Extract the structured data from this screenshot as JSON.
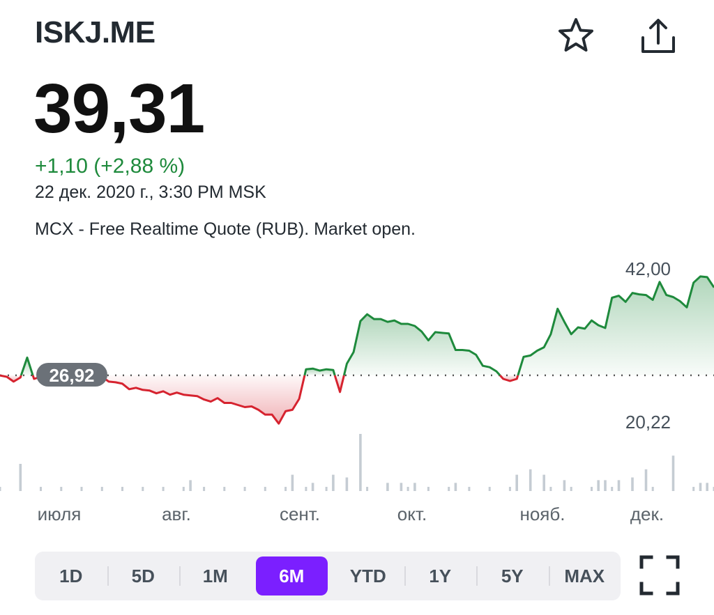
{
  "header": {
    "ticker": "ISKJ.ME",
    "star_icon": "star-icon",
    "share_icon": "share-icon"
  },
  "quote": {
    "price": "39,31",
    "change": "+1,10 (+2,88 %)",
    "timestamp": "22 дек. 2020 г., 3:30 PM MSK",
    "source": "MCX - Free Realtime Quote (RUB). Market open."
  },
  "chart_data": {
    "type": "area",
    "baseline": 26.92,
    "baseline_label": "26,92",
    "ylim": [
      20.22,
      42.0
    ],
    "yticks": [
      "42,00",
      "20,22"
    ],
    "x_labels": [
      "июля",
      "авг.",
      "сент.",
      "окт.",
      "нояб.",
      "дек."
    ],
    "colors": {
      "up": "#1e8a3c",
      "down": "#d6232f",
      "volume": "#c5ccd3"
    },
    "grid": false,
    "values": [
      26.9,
      26.7,
      26.0,
      26.6,
      29.5,
      26.4,
      26.7,
      26.9,
      26.3,
      26.5,
      26.1,
      25.9,
      26.4,
      26.0,
      26.5,
      26.7,
      26.0,
      25.9,
      25.7,
      24.9,
      25.1,
      24.8,
      24.7,
      24.3,
      24.6,
      24.1,
      24.4,
      24.1,
      24.0,
      23.9,
      23.4,
      23.1,
      23.6,
      22.9,
      22.9,
      22.6,
      22.3,
      22.4,
      21.9,
      21.2,
      21.2,
      19.9,
      21.7,
      21.9,
      23.5,
      27.8,
      27.9,
      27.6,
      27.8,
      27.7,
      24.5,
      28.6,
      30.3,
      34.8,
      35.8,
      35.1,
      35.1,
      34.7,
      34.9,
      34.4,
      34.4,
      34.1,
      33.3,
      32.0,
      33.2,
      33.1,
      33.0,
      30.6,
      30.6,
      30.5,
      29.9,
      28.3,
      28.1,
      27.5,
      26.4,
      26.1,
      26.4,
      29.6,
      29.8,
      30.5,
      31.0,
      32.9,
      36.6,
      34.7,
      32.9,
      33.9,
      33.7,
      34.9,
      34.2,
      33.8,
      38.2,
      38.5,
      37.6,
      38.9,
      38.7,
      38.6,
      37.9,
      40.5,
      38.6,
      38.3,
      37.7,
      36.8,
      40.4,
      41.3,
      41.2,
      39.7
    ],
    "volumes": [
      0,
      0,
      0,
      0.2,
      0,
      0,
      0,
      0,
      0,
      0,
      0,
      0,
      0,
      0,
      0,
      0,
      0,
      0,
      0,
      0,
      0,
      0,
      0,
      0,
      0,
      0,
      0,
      0,
      0.08,
      0,
      0,
      0,
      0,
      0,
      0,
      0,
      0,
      0,
      0,
      0,
      0,
      0,
      0,
      0.12,
      0,
      0,
      0.06,
      0,
      0,
      0.12,
      0,
      0.1,
      0,
      0.42,
      0,
      0,
      0,
      0.06,
      0,
      0.06,
      0,
      0.06,
      0,
      0,
      0,
      0,
      0,
      0.06,
      0,
      0,
      0,
      0,
      0,
      0,
      0,
      0,
      0.12,
      0,
      0.16,
      0,
      0.12,
      0,
      0,
      0.08,
      0,
      0,
      0,
      0,
      0.08,
      0.08,
      0,
      0.08,
      0,
      0.1,
      0,
      0.16,
      0,
      0,
      0,
      0.26,
      0,
      0,
      0,
      0.06,
      0.06,
      0
    ]
  },
  "range_tabs": {
    "items": [
      {
        "label": "1D"
      },
      {
        "label": "5D"
      },
      {
        "label": "1M"
      },
      {
        "label": "6M"
      },
      {
        "label": "YTD"
      },
      {
        "label": "1Y"
      },
      {
        "label": "5Y"
      },
      {
        "label": "MAX"
      }
    ],
    "selected": "6M",
    "accent": "#7b1fff"
  },
  "fullscreen_icon": "fullscreen-icon"
}
